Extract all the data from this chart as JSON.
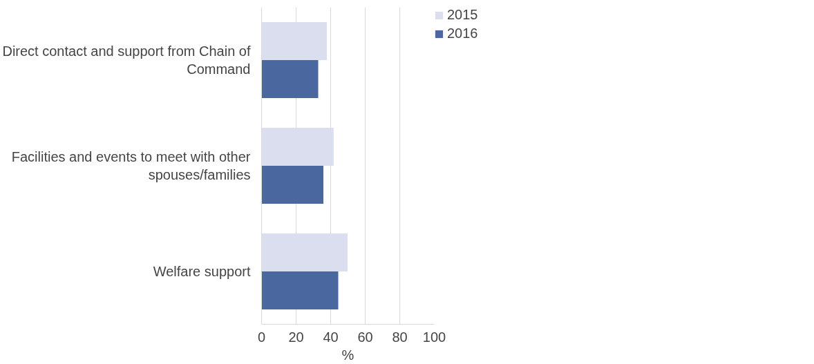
{
  "chart_data": {
    "type": "bar",
    "orientation": "horizontal",
    "categories": [
      "Direct contact and support from Chain of Command",
      "Facilities and events to meet with other spouses/families",
      "Welfare support"
    ],
    "series": [
      {
        "name": "2015",
        "color": "#dadeee",
        "values": [
          37.8,
          41.7,
          49.8
        ]
      },
      {
        "name": "2016",
        "color": "#4b67a0",
        "values": [
          32.8,
          35.8,
          44.4
        ]
      }
    ],
    "xlim": [
      0,
      100
    ],
    "xticks": [
      0,
      20,
      40,
      60,
      80,
      100
    ],
    "xlabel": "%",
    "grid": "x",
    "legend": "top right"
  }
}
